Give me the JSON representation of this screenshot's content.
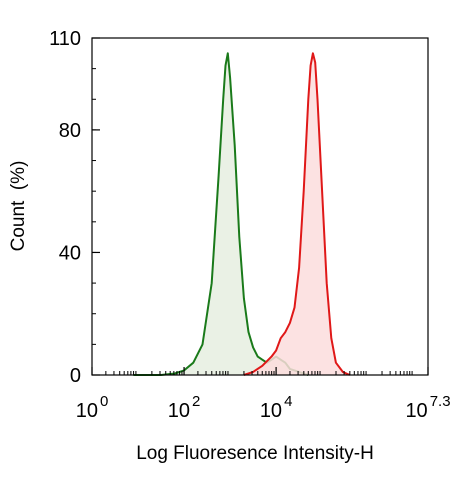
{
  "chart_data": {
    "type": "area",
    "title": "",
    "xlabel": "Log Fluoresence Intensity-H",
    "ylabel": "Count  (%)",
    "x_scale": "log10",
    "xlim": [
      0,
      7.3
    ],
    "ylim": [
      0,
      110
    ],
    "x_ticks": [
      {
        "exp": 0,
        "base": "10",
        "sup": "0"
      },
      {
        "exp": 2,
        "base": "10",
        "sup": "2"
      },
      {
        "exp": 4,
        "base": "10",
        "sup": "4"
      },
      {
        "exp": 7.3,
        "base": "10",
        "sup": "7.3"
      }
    ],
    "y_ticks": [
      0,
      40,
      80,
      110
    ],
    "grid": false,
    "legend": "none",
    "series": [
      {
        "color": "#1a7a1a",
        "fill": "#e6efe0",
        "points": [
          [
            0.9,
            0
          ],
          [
            1.5,
            0
          ],
          [
            1.8,
            0.5
          ],
          [
            2.0,
            1.5
          ],
          [
            2.2,
            4
          ],
          [
            2.4,
            10
          ],
          [
            2.6,
            30
          ],
          [
            2.75,
            65
          ],
          [
            2.85,
            90
          ],
          [
            2.9,
            101
          ],
          [
            2.95,
            105
          ],
          [
            3.0,
            97
          ],
          [
            3.1,
            75
          ],
          [
            3.2,
            45
          ],
          [
            3.3,
            25
          ],
          [
            3.4,
            14
          ],
          [
            3.5,
            9
          ],
          [
            3.6,
            6
          ],
          [
            3.7,
            5
          ],
          [
            3.8,
            4
          ],
          [
            3.9,
            5
          ],
          [
            4.0,
            6
          ],
          [
            4.1,
            5
          ],
          [
            4.2,
            4
          ],
          [
            4.3,
            2
          ],
          [
            4.5,
            1
          ],
          [
            4.7,
            0
          ]
        ]
      },
      {
        "color": "#e01818",
        "fill": "#fbdddd",
        "points": [
          [
            3.3,
            0
          ],
          [
            3.5,
            1
          ],
          [
            3.7,
            3
          ],
          [
            3.9,
            6
          ],
          [
            4.0,
            8
          ],
          [
            4.1,
            12
          ],
          [
            4.2,
            14
          ],
          [
            4.3,
            17
          ],
          [
            4.4,
            22
          ],
          [
            4.5,
            35
          ],
          [
            4.6,
            60
          ],
          [
            4.7,
            90
          ],
          [
            4.75,
            101
          ],
          [
            4.8,
            105
          ],
          [
            4.85,
            102
          ],
          [
            4.9,
            90
          ],
          [
            5.0,
            60
          ],
          [
            5.1,
            30
          ],
          [
            5.2,
            12
          ],
          [
            5.3,
            4
          ],
          [
            5.45,
            1
          ],
          [
            5.6,
            0
          ]
        ]
      }
    ]
  }
}
